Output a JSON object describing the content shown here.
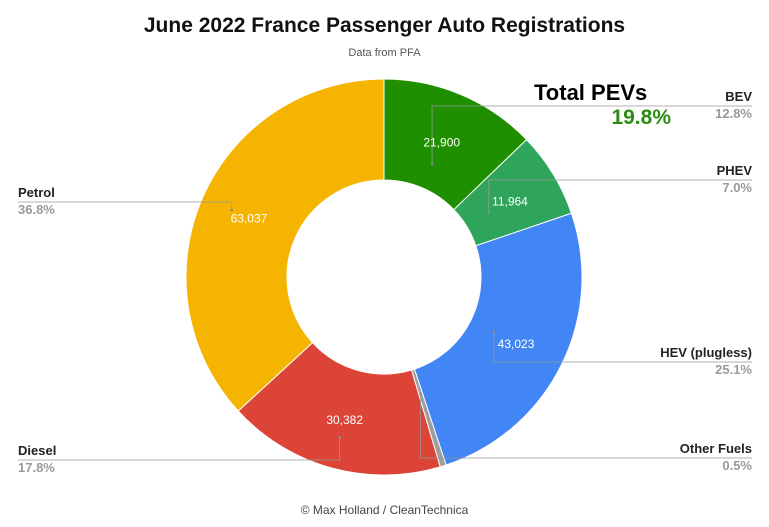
{
  "title": "June 2022 France Passenger Auto Registrations",
  "subtitle": "Data from PFA",
  "footer": "© Max Holland / CleanTechnica",
  "annotation": {
    "label": "Total PEVs",
    "value": "19.8%"
  },
  "chart_data": {
    "type": "pie",
    "variant": "donut",
    "title": "June 2022 France Passenger Auto Registrations",
    "subtitle": "Data from PFA",
    "slices": [
      {
        "name": "BEV",
        "value": 21900,
        "value_label": "21,900",
        "percent_label": "12.8%",
        "color": "#1f8f00"
      },
      {
        "name": "PHEV",
        "value": 11964,
        "value_label": "11,964",
        "percent_label": "7.0%",
        "color": "#2ea55a"
      },
      {
        "name": "HEV (plugless)",
        "value": 43023,
        "value_label": "43,023",
        "percent_label": "25.1%",
        "color": "#4285f4"
      },
      {
        "name": "Other Fuels",
        "value": 850,
        "value_label": "",
        "percent_label": "0.5%",
        "color": "#9e9e9e"
      },
      {
        "name": "Diesel",
        "value": 30382,
        "value_label": "30,382",
        "percent_label": "17.8%",
        "color": "#db4437"
      },
      {
        "name": "Petrol",
        "value": 63037,
        "value_label": "63,037",
        "percent_label": "36.8%",
        "color": "#f4b400"
      }
    ],
    "start_angle": "12 o'clock",
    "direction": "clockwise",
    "legend": "leader-line labels outside"
  }
}
